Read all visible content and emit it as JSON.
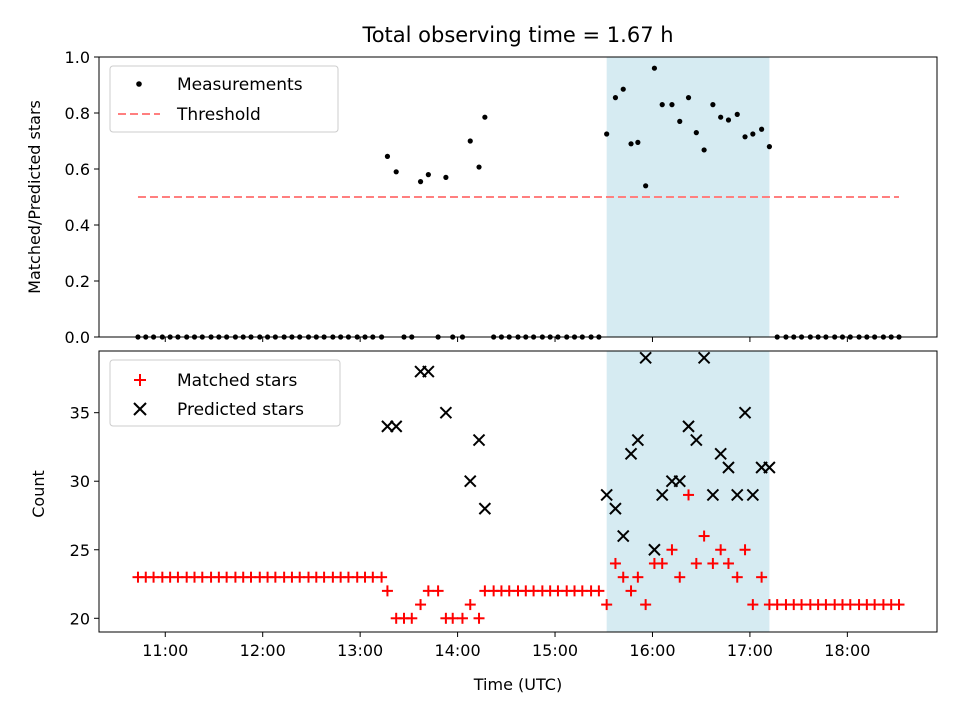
{
  "title": "Total observing time = 1.67 h",
  "chart_data": [
    {
      "type": "scatter",
      "panel": "top",
      "ylabel": "Matched/Predicted stars",
      "xlabel": "",
      "x_unit": "hours UTC",
      "xlim": [
        10.32,
        18.92
      ],
      "ylim": [
        0,
        1.0
      ],
      "yticks": [
        0.0,
        0.2,
        0.4,
        0.6,
        0.8,
        1.0
      ],
      "ytick_labels": [
        "0.0",
        "0.2",
        "0.4",
        "0.6",
        "0.8",
        "1.0"
      ],
      "legend_position": "top-left",
      "highlight_band": {
        "x0": 15.53,
        "x1": 17.2,
        "color": "#add8e6"
      },
      "series": [
        {
          "name": "Measurements",
          "style": "dot",
          "color": "#000000",
          "x": [
            10.72,
            10.8,
            10.88,
            10.97,
            11.05,
            11.13,
            11.22,
            11.3,
            11.38,
            11.47,
            11.55,
            11.63,
            11.72,
            11.8,
            11.88,
            11.97,
            12.05,
            12.13,
            12.22,
            12.3,
            12.38,
            12.47,
            12.55,
            12.63,
            12.72,
            12.8,
            12.88,
            12.97,
            13.05,
            13.13,
            13.22,
            13.28,
            13.37,
            13.45,
            13.53,
            13.62,
            13.7,
            13.8,
            13.88,
            13.95,
            14.05,
            14.13,
            14.22,
            14.28,
            14.37,
            14.45,
            14.53,
            14.62,
            14.7,
            14.78,
            14.87,
            14.95,
            15.03,
            15.12,
            15.2,
            15.28,
            15.37,
            15.45,
            15.53,
            15.62,
            15.7,
            15.78,
            15.85,
            15.93,
            16.02,
            16.1,
            16.2,
            16.28,
            16.37,
            16.45,
            16.53,
            16.62,
            16.7,
            16.78,
            16.87,
            16.95,
            17.03,
            17.12,
            17.2,
            17.28,
            17.37,
            17.45,
            17.53,
            17.62,
            17.7,
            17.78,
            17.87,
            17.95,
            18.03,
            18.12,
            18.2,
            18.28,
            18.37,
            18.45,
            18.53
          ],
          "y": [
            0,
            0,
            0,
            0,
            0,
            0,
            0,
            0,
            0,
            0,
            0,
            0,
            0,
            0,
            0,
            0,
            0,
            0,
            0,
            0,
            0,
            0,
            0,
            0,
            0,
            0,
            0,
            0,
            0,
            0,
            0,
            0.645,
            0.59,
            0,
            0,
            0.555,
            0.58,
            0,
            0.57,
            0,
            0,
            0.7,
            0.607,
            0.785,
            0,
            0,
            0,
            0,
            0,
            0,
            0,
            0,
            0,
            0,
            0,
            0,
            0,
            0,
            0.725,
            0.855,
            0.885,
            0.69,
            0.695,
            0.54,
            0.96,
            0.83,
            0.83,
            0.77,
            0.855,
            0.73,
            0.668,
            0.83,
            0.785,
            0.775,
            0.795,
            0.715,
            0.725,
            0.742,
            0.68,
            0,
            0,
            0,
            0,
            0,
            0,
            0,
            0,
            0,
            0,
            0,
            0,
            0,
            0,
            0,
            0
          ]
        },
        {
          "name": "Threshold",
          "style": "dashed-line",
          "color": "#ff7f7f",
          "x": [
            10.72,
            18.53
          ],
          "y": [
            0.5,
            0.5
          ]
        }
      ]
    },
    {
      "type": "scatter",
      "panel": "bottom",
      "ylabel": "Count",
      "xlabel": "Time (UTC)",
      "x_unit": "hours UTC",
      "xlim": [
        10.32,
        18.92
      ],
      "ylim": [
        19,
        39.5
      ],
      "yticks": [
        20,
        25,
        30,
        35
      ],
      "ytick_labels": [
        "20",
        "25",
        "30",
        "35"
      ],
      "xticks": [
        11,
        12,
        13,
        14,
        15,
        16,
        17,
        18
      ],
      "xtick_labels": [
        "11:00",
        "12:00",
        "13:00",
        "14:00",
        "15:00",
        "16:00",
        "17:00",
        "18:00"
      ],
      "legend_position": "top-left",
      "highlight_band": {
        "x0": 15.53,
        "x1": 17.2,
        "color": "#add8e6"
      },
      "series": [
        {
          "name": "Matched stars",
          "style": "plus",
          "color": "#ff0000",
          "x": [
            10.72,
            10.8,
            10.88,
            10.97,
            11.05,
            11.13,
            11.22,
            11.3,
            11.38,
            11.47,
            11.55,
            11.63,
            11.72,
            11.8,
            11.88,
            11.97,
            12.05,
            12.13,
            12.22,
            12.3,
            12.38,
            12.47,
            12.55,
            12.63,
            12.72,
            12.8,
            12.88,
            12.97,
            13.05,
            13.13,
            13.22,
            13.28,
            13.37,
            13.45,
            13.53,
            13.62,
            13.7,
            13.8,
            13.88,
            13.95,
            14.05,
            14.13,
            14.22,
            14.28,
            14.37,
            14.45,
            14.53,
            14.62,
            14.7,
            14.78,
            14.87,
            14.95,
            15.03,
            15.12,
            15.2,
            15.28,
            15.37,
            15.45,
            15.53,
            15.62,
            15.7,
            15.78,
            15.85,
            15.93,
            16.02,
            16.1,
            16.2,
            16.28,
            16.37,
            16.45,
            16.53,
            16.62,
            16.7,
            16.78,
            16.87,
            16.95,
            17.03,
            17.12,
            17.2,
            17.28,
            17.37,
            17.45,
            17.53,
            17.62,
            17.7,
            17.78,
            17.87,
            17.95,
            18.03,
            18.12,
            18.2,
            18.28,
            18.37,
            18.45,
            18.53
          ],
          "y": [
            23,
            23,
            23,
            23,
            23,
            23,
            23,
            23,
            23,
            23,
            23,
            23,
            23,
            23,
            23,
            23,
            23,
            23,
            23,
            23,
            23,
            23,
            23,
            23,
            23,
            23,
            23,
            23,
            23,
            23,
            23,
            22,
            20,
            20,
            20,
            21,
            22,
            22,
            20,
            20,
            20,
            21,
            20,
            22,
            22,
            22,
            22,
            22,
            22,
            22,
            22,
            22,
            22,
            22,
            22,
            22,
            22,
            22,
            21,
            24,
            23,
            22,
            23,
            21,
            24,
            24,
            25,
            23,
            29,
            24,
            26,
            24,
            25,
            24,
            23,
            25,
            21,
            23,
            21,
            21,
            21,
            21,
            21,
            21,
            21,
            21,
            21,
            21,
            21,
            21,
            21,
            21,
            21,
            21,
            21
          ]
        },
        {
          "name": "Predicted stars",
          "style": "x",
          "color": "#000000",
          "x": [
            13.28,
            13.37,
            13.62,
            13.7,
            13.88,
            14.13,
            14.22,
            14.28,
            15.53,
            15.62,
            15.7,
            15.78,
            15.85,
            15.93,
            16.02,
            16.1,
            16.2,
            16.28,
            16.37,
            16.45,
            16.53,
            16.62,
            16.7,
            16.78,
            16.87,
            16.95,
            17.03,
            17.12,
            17.2
          ],
          "y": [
            34,
            34,
            38,
            38,
            35,
            30,
            33,
            28,
            29,
            28,
            26,
            32,
            33,
            39,
            25,
            29,
            30,
            30,
            34,
            33,
            39,
            29,
            32,
            31,
            29,
            35,
            29,
            31,
            31
          ]
        }
      ]
    }
  ]
}
